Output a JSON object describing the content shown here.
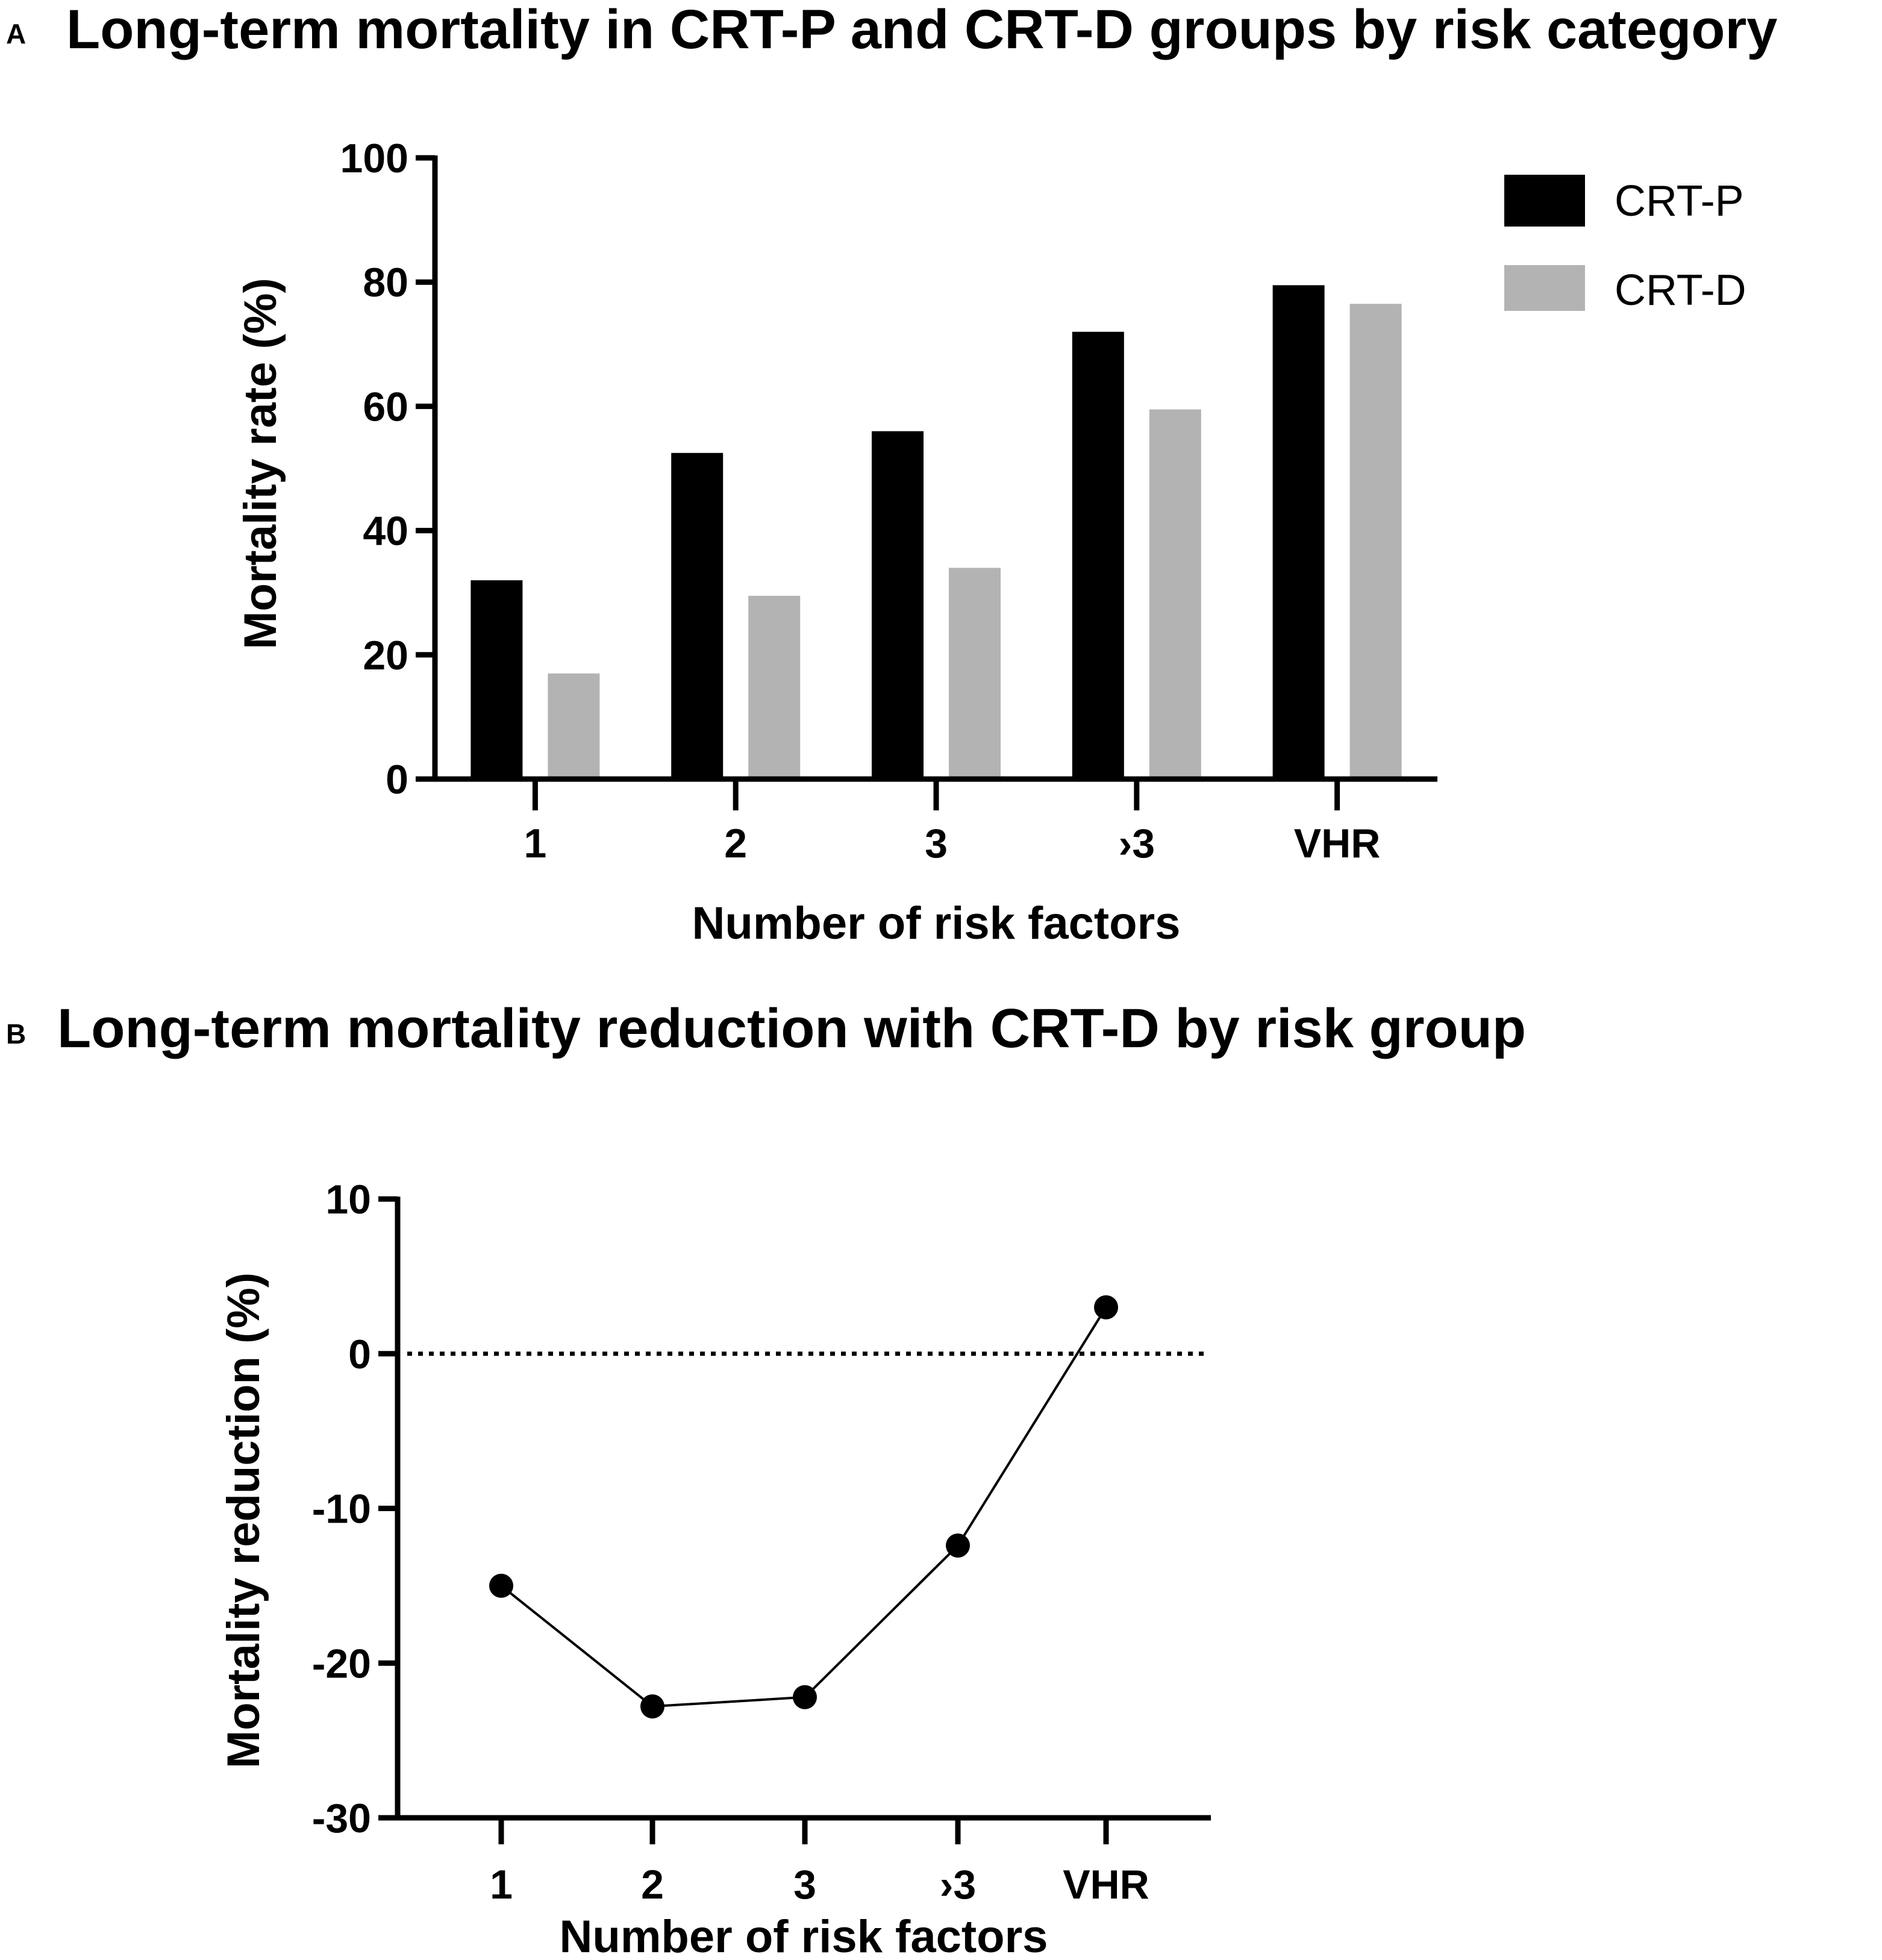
{
  "panels": {
    "a": {
      "letter": "A",
      "title": "Long-term mortality in CRT-P and CRT-D groups by risk category"
    },
    "b": {
      "letter": "B",
      "title": "Long-term mortality reduction with CRT-D by risk group"
    }
  },
  "colors": {
    "crt_p": "#000000",
    "crt_d": "#b3b3b3",
    "axis": "#000000",
    "line": "#000000"
  },
  "chart_data": [
    {
      "type": "bar",
      "title": "Long-term mortality in CRT-P and CRT-D groups by risk category",
      "categories": [
        "1",
        "2",
        "3",
        "›3",
        "VHR"
      ],
      "series": [
        {
          "name": "CRT-P",
          "values": [
            32,
            52.5,
            56,
            72,
            79.5
          ]
        },
        {
          "name": "CRT-D",
          "values": [
            17,
            29.5,
            34,
            59.5,
            76.5
          ]
        }
      ],
      "xlabel": "Number of risk factors",
      "ylabel": "Mortality rate (%)",
      "ylim": [
        0,
        100
      ],
      "yticks": [
        "0",
        "20",
        "40",
        "60",
        "80",
        "100"
      ],
      "legend": "top-right",
      "grid": false
    },
    {
      "type": "line",
      "title": "Long-term mortality reduction with CRT-D by risk group",
      "categories": [
        "1",
        "2",
        "3",
        "›3",
        "VHR"
      ],
      "series": [
        {
          "name": "Mortality reduction",
          "values": [
            -15,
            -22.8,
            -22.2,
            -12.4,
            3
          ]
        }
      ],
      "xlabel": "Number of risk factors",
      "ylabel": "Mortality reduction (%)",
      "ylim": [
        -30,
        10
      ],
      "yticks": [
        "-30",
        "-20",
        "-10",
        "0",
        "10"
      ],
      "reference_line": {
        "y": 0,
        "style": "dotted"
      },
      "grid": false
    }
  ]
}
